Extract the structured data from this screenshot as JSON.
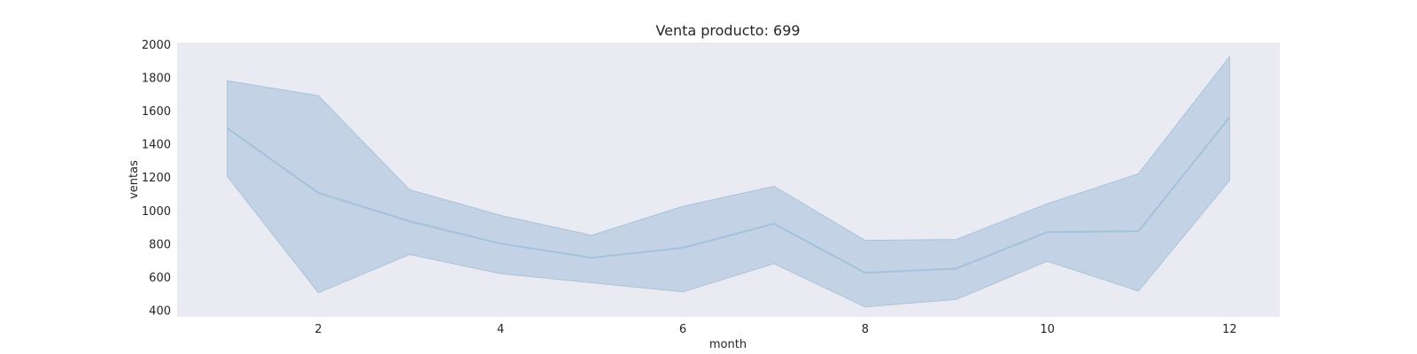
{
  "chart_data": {
    "type": "line",
    "title": "Venta producto: 699",
    "xlabel": "month",
    "ylabel": "ventas",
    "xlim": [
      0.45,
      12.55
    ],
    "ylim": [
      360,
      2010
    ],
    "xticks": [
      2,
      4,
      6,
      8,
      10,
      12
    ],
    "yticks": [
      400,
      600,
      800,
      1000,
      1200,
      1400,
      1600,
      1800,
      2000
    ],
    "grid": false,
    "colors": {
      "plot_bg": "#eaeaf2",
      "line": "#a4c2dc",
      "band": "#c3d3e5",
      "band_edge": "#a9c3dc"
    },
    "series": [
      {
        "x": [
          1,
          2,
          3,
          4,
          5,
          6,
          7,
          8,
          9,
          10,
          11,
          12
        ],
        "values": [
          1495,
          1105,
          935,
          800,
          715,
          775,
          920,
          625,
          650,
          870,
          875,
          1560
        ],
        "ci_lower": [
          1205,
          505,
          735,
          620,
          565,
          510,
          680,
          420,
          465,
          695,
          515,
          1180
        ],
        "ci_upper": [
          1780,
          1690,
          1125,
          970,
          850,
          1025,
          1145,
          820,
          825,
          1040,
          1220,
          1925
        ]
      }
    ]
  }
}
